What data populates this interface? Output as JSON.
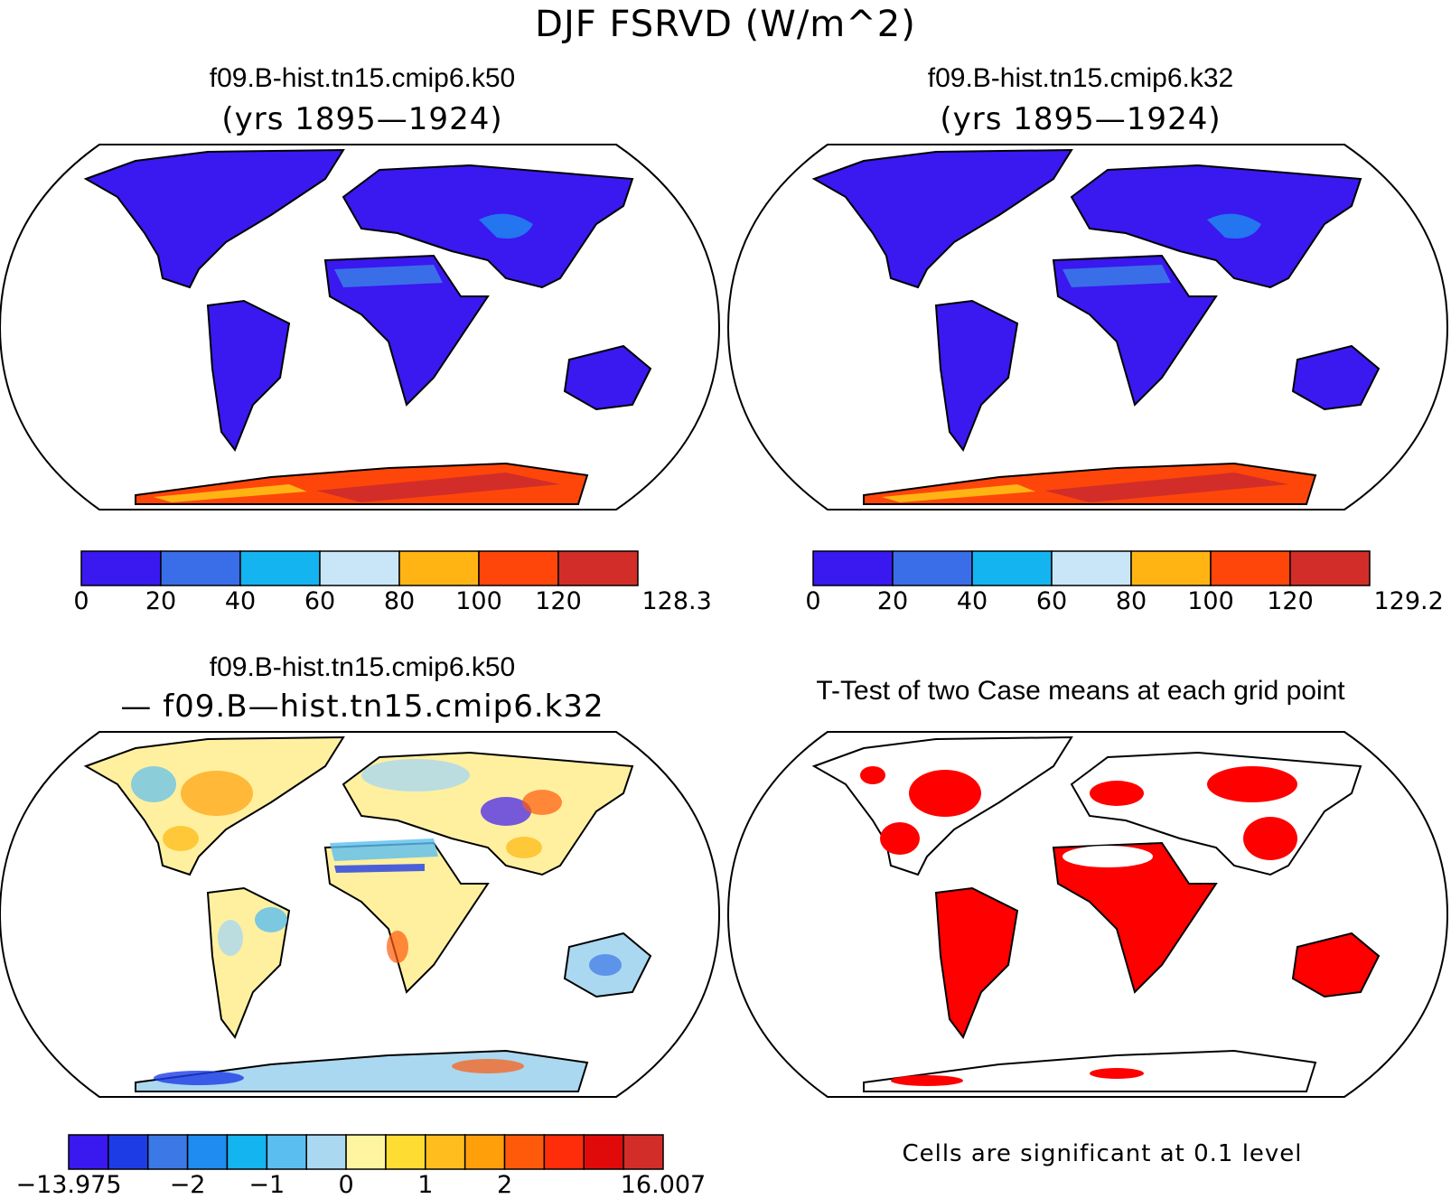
{
  "figure": {
    "main_title": "DJF FSRVD (W/m^2)"
  },
  "panels": [
    {
      "title": "f09.B-hist.tn15.cmip6.k50",
      "subtitle": "(yrs 1895—1924)",
      "colorbar": {
        "colors": [
          "#3a18f0",
          "#3a6ee8",
          "#14b4f0",
          "#c8e6f8",
          "#ffb414",
          "#ff460a",
          "#d22d28"
        ],
        "labels": [
          "0",
          "20",
          "40",
          "60",
          "80",
          "100",
          "120",
          "128.3"
        ]
      }
    },
    {
      "title": "f09.B-hist.tn15.cmip6.k32",
      "subtitle": "(yrs 1895—1924)",
      "colorbar": {
        "colors": [
          "#3a18f0",
          "#3a6ee8",
          "#14b4f0",
          "#c8e6f8",
          "#ffb414",
          "#ff460a",
          "#d22d28"
        ],
        "labels": [
          "0",
          "20",
          "40",
          "60",
          "80",
          "100",
          "120",
          "129.2"
        ]
      }
    },
    {
      "title": "f09.B-hist.tn15.cmip6.k50",
      "subtitle": "— f09.B—hist.tn15.cmip6.k32",
      "colorbar": {
        "colors": [
          "#3a18f0",
          "#1e3ce6",
          "#3c78e6",
          "#1e8cf0",
          "#14b4f0",
          "#5abef0",
          "#aad8f0",
          "#fff5a0",
          "#ffdc32",
          "#ffbe1e",
          "#ffa00a",
          "#ff5a0a",
          "#ff2d0a",
          "#e10a0a",
          "#d22d28"
        ],
        "labels": [
          "−13.975",
          "−2",
          "−1",
          "0",
          "1",
          "2",
          "16.007"
        ]
      }
    },
    {
      "title": "T-Test of two Case means at each grid point",
      "note": "Cells are significant at 0.1 level",
      "significant_color": "#ff0000"
    }
  ],
  "map": {
    "land_fill_panels_1_2": "#3a18f0",
    "land_fill_panel_3": "#fff0a0",
    "antarctica_fill": "#d22d28",
    "coastline_color": "#000000"
  }
}
